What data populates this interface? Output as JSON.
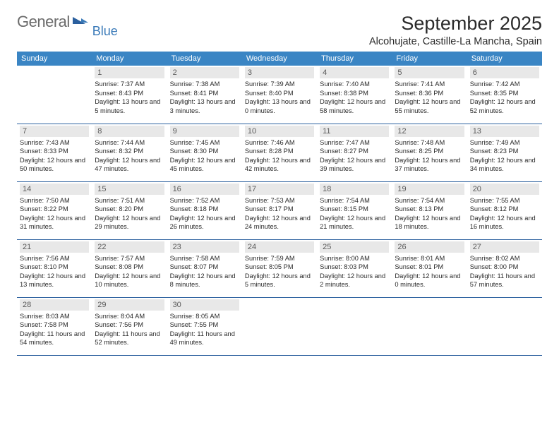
{
  "logo": {
    "main": "General",
    "sub": "Blue"
  },
  "title": "September 2025",
  "location": "Alcohujate, Castille-La Mancha, Spain",
  "day_headers": [
    "Sunday",
    "Monday",
    "Tuesday",
    "Wednesday",
    "Thursday",
    "Friday",
    "Saturday"
  ],
  "colors": {
    "header_bg": "#3a85c4",
    "header_text": "#ffffff",
    "daynum_bg": "#e8e8e8",
    "row_border": "#2a5f9e",
    "logo_gray": "#6b6b6b",
    "logo_blue": "#3a7ab8"
  },
  "weeks": [
    [
      null,
      {
        "n": "1",
        "sr": "7:37 AM",
        "ss": "8:43 PM",
        "dl": "13 hours and 5 minutes."
      },
      {
        "n": "2",
        "sr": "7:38 AM",
        "ss": "8:41 PM",
        "dl": "13 hours and 3 minutes."
      },
      {
        "n": "3",
        "sr": "7:39 AM",
        "ss": "8:40 PM",
        "dl": "13 hours and 0 minutes."
      },
      {
        "n": "4",
        "sr": "7:40 AM",
        "ss": "8:38 PM",
        "dl": "12 hours and 58 minutes."
      },
      {
        "n": "5",
        "sr": "7:41 AM",
        "ss": "8:36 PM",
        "dl": "12 hours and 55 minutes."
      },
      {
        "n": "6",
        "sr": "7:42 AM",
        "ss": "8:35 PM",
        "dl": "12 hours and 52 minutes."
      }
    ],
    [
      {
        "n": "7",
        "sr": "7:43 AM",
        "ss": "8:33 PM",
        "dl": "12 hours and 50 minutes."
      },
      {
        "n": "8",
        "sr": "7:44 AM",
        "ss": "8:32 PM",
        "dl": "12 hours and 47 minutes."
      },
      {
        "n": "9",
        "sr": "7:45 AM",
        "ss": "8:30 PM",
        "dl": "12 hours and 45 minutes."
      },
      {
        "n": "10",
        "sr": "7:46 AM",
        "ss": "8:28 PM",
        "dl": "12 hours and 42 minutes."
      },
      {
        "n": "11",
        "sr": "7:47 AM",
        "ss": "8:27 PM",
        "dl": "12 hours and 39 minutes."
      },
      {
        "n": "12",
        "sr": "7:48 AM",
        "ss": "8:25 PM",
        "dl": "12 hours and 37 minutes."
      },
      {
        "n": "13",
        "sr": "7:49 AM",
        "ss": "8:23 PM",
        "dl": "12 hours and 34 minutes."
      }
    ],
    [
      {
        "n": "14",
        "sr": "7:50 AM",
        "ss": "8:22 PM",
        "dl": "12 hours and 31 minutes."
      },
      {
        "n": "15",
        "sr": "7:51 AM",
        "ss": "8:20 PM",
        "dl": "12 hours and 29 minutes."
      },
      {
        "n": "16",
        "sr": "7:52 AM",
        "ss": "8:18 PM",
        "dl": "12 hours and 26 minutes."
      },
      {
        "n": "17",
        "sr": "7:53 AM",
        "ss": "8:17 PM",
        "dl": "12 hours and 24 minutes."
      },
      {
        "n": "18",
        "sr": "7:54 AM",
        "ss": "8:15 PM",
        "dl": "12 hours and 21 minutes."
      },
      {
        "n": "19",
        "sr": "7:54 AM",
        "ss": "8:13 PM",
        "dl": "12 hours and 18 minutes."
      },
      {
        "n": "20",
        "sr": "7:55 AM",
        "ss": "8:12 PM",
        "dl": "12 hours and 16 minutes."
      }
    ],
    [
      {
        "n": "21",
        "sr": "7:56 AM",
        "ss": "8:10 PM",
        "dl": "12 hours and 13 minutes."
      },
      {
        "n": "22",
        "sr": "7:57 AM",
        "ss": "8:08 PM",
        "dl": "12 hours and 10 minutes."
      },
      {
        "n": "23",
        "sr": "7:58 AM",
        "ss": "8:07 PM",
        "dl": "12 hours and 8 minutes."
      },
      {
        "n": "24",
        "sr": "7:59 AM",
        "ss": "8:05 PM",
        "dl": "12 hours and 5 minutes."
      },
      {
        "n": "25",
        "sr": "8:00 AM",
        "ss": "8:03 PM",
        "dl": "12 hours and 2 minutes."
      },
      {
        "n": "26",
        "sr": "8:01 AM",
        "ss": "8:01 PM",
        "dl": "12 hours and 0 minutes."
      },
      {
        "n": "27",
        "sr": "8:02 AM",
        "ss": "8:00 PM",
        "dl": "11 hours and 57 minutes."
      }
    ],
    [
      {
        "n": "28",
        "sr": "8:03 AM",
        "ss": "7:58 PM",
        "dl": "11 hours and 54 minutes."
      },
      {
        "n": "29",
        "sr": "8:04 AM",
        "ss": "7:56 PM",
        "dl": "11 hours and 52 minutes."
      },
      {
        "n": "30",
        "sr": "8:05 AM",
        "ss": "7:55 PM",
        "dl": "11 hours and 49 minutes."
      },
      null,
      null,
      null,
      null
    ]
  ],
  "labels": {
    "sunrise": "Sunrise:",
    "sunset": "Sunset:",
    "daylight": "Daylight:"
  }
}
